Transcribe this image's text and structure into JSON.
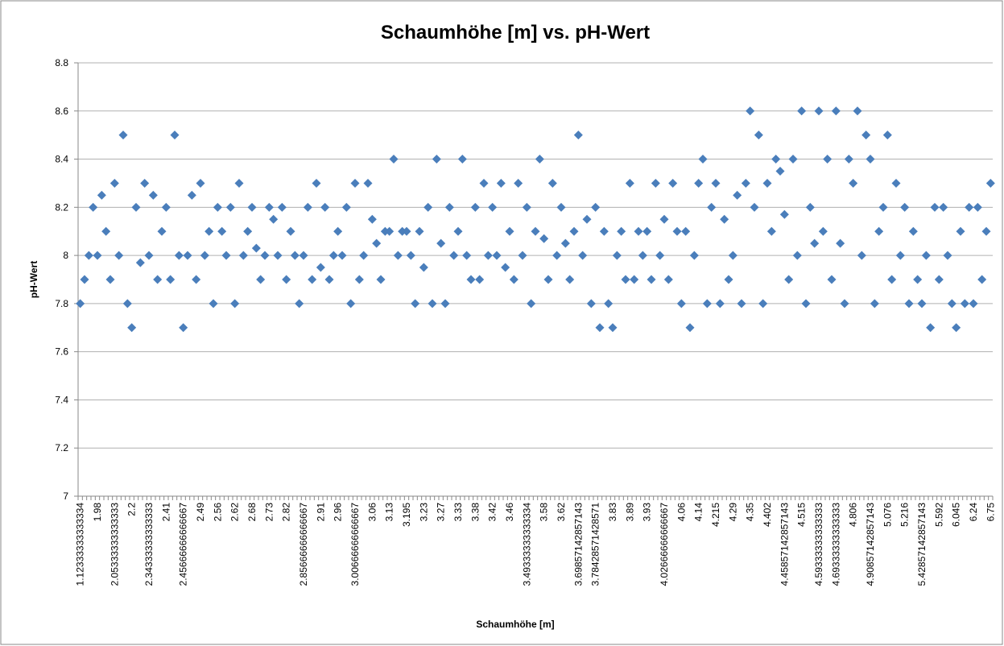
{
  "chart_data": {
    "type": "scatter-category",
    "title": "Schaumhöhe [m] vs. pH-Wert",
    "x_label": "Schaumhöhe [m]",
    "y_label": "pH-Wert",
    "color": "#4a7ebb",
    "grid": true,
    "ylim": [
      7,
      8.8
    ],
    "yticks": [
      7,
      {
        "value": 7.2,
        "label": "7.2"
      },
      {
        "value": 7.4,
        "label": "7.4"
      },
      {
        "value": 7.6,
        "label": "7.6"
      },
      {
        "value": 7.8,
        "label": "7.8"
      },
      8,
      {
        "value": 8.2,
        "label": "8.2"
      },
      {
        "value": 8.4,
        "label": "8.4"
      },
      {
        "value": 8.6,
        "label": "8.6"
      },
      {
        "value": 8.8,
        "label": "8.8"
      }
    ],
    "categories": [
      "1.12333333333334",
      null,
      null,
      null,
      "1.98",
      null,
      null,
      null,
      "2.05333333333333",
      null,
      null,
      null,
      "2.2",
      null,
      null,
      null,
      "2.34333333333333",
      null,
      null,
      null,
      "2.41",
      null,
      null,
      null,
      "2.45666666666667",
      null,
      null,
      null,
      "2.49",
      null,
      null,
      null,
      "2.56",
      null,
      null,
      null,
      "2.62",
      null,
      null,
      null,
      "2.68",
      null,
      null,
      null,
      "2.73",
      null,
      null,
      null,
      "2.82",
      null,
      null,
      null,
      "2.85666666666667",
      null,
      null,
      null,
      "2.91",
      null,
      null,
      null,
      "2.96",
      null,
      null,
      null,
      "3.00666666666667",
      null,
      null,
      null,
      "3.06",
      null,
      null,
      null,
      "3.13",
      null,
      null,
      null,
      "3.195",
      null,
      null,
      null,
      "3.23",
      null,
      null,
      null,
      "3.27",
      null,
      null,
      null,
      "3.33",
      null,
      null,
      null,
      "3.38",
      null,
      null,
      null,
      "3.42",
      null,
      null,
      null,
      "3.46",
      null,
      null,
      null,
      "3.49333333333334",
      null,
      null,
      null,
      "3.58",
      null,
      null,
      null,
      "3.62",
      null,
      null,
      null,
      "3.69857142857143",
      null,
      null,
      null,
      "3.78428571428571",
      null,
      null,
      null,
      "3.83",
      null,
      null,
      null,
      "3.89",
      null,
      null,
      null,
      "3.93",
      null,
      null,
      null,
      "4.02666666666667",
      null,
      null,
      null,
      "4.06",
      null,
      null,
      null,
      "4.14",
      null,
      null,
      null,
      "4.215",
      null,
      null,
      null,
      "4.29",
      null,
      null,
      null,
      "4.35",
      null,
      null,
      null,
      "4.402",
      null,
      null,
      null,
      "4.45857142857143",
      null,
      null,
      null,
      "4.515",
      null,
      null,
      null,
      "4.59333333333333",
      null,
      null,
      null,
      "4.69333333333333",
      null,
      null,
      null,
      "4.806",
      null,
      null,
      null,
      "4.90857142857143",
      null,
      null,
      null,
      "5.076",
      null,
      null,
      null,
      "5.216",
      null,
      null,
      null,
      "5.42857142857143",
      null,
      null,
      null,
      "5.592",
      null,
      null,
      null,
      "6.045",
      null,
      null,
      null,
      "6.24",
      null,
      null,
      null,
      "6.75"
    ],
    "values": [
      7.8,
      7.9,
      8.0,
      8.2,
      8.0,
      8.25,
      8.1,
      7.9,
      8.3,
      8.0,
      8.5,
      7.8,
      7.7,
      8.2,
      7.97,
      8.3,
      8.0,
      8.25,
      7.9,
      8.1,
      8.2,
      7.9,
      8.5,
      8.0,
      7.7,
      8.0,
      8.25,
      7.9,
      8.3,
      8.0,
      8.1,
      7.8,
      8.2,
      8.1,
      8.0,
      8.2,
      7.8,
      8.3,
      8.0,
      8.1,
      8.2,
      8.03,
      7.9,
      8.0,
      8.2,
      8.15,
      8.0,
      8.2,
      7.9,
      8.1,
      8.0,
      7.8,
      8.0,
      8.2,
      7.9,
      8.3,
      7.95,
      8.2,
      7.9,
      8.0,
      8.1,
      8.0,
      8.2,
      7.8,
      8.3,
      7.9,
      8.0,
      8.3,
      8.15,
      8.05,
      7.9,
      8.1,
      8.1,
      8.4,
      8.0,
      8.1,
      8.1,
      8.0,
      7.8,
      8.1,
      7.95,
      8.2,
      7.8,
      8.4,
      8.05,
      7.8,
      8.2,
      8.0,
      8.1,
      8.4,
      8.0,
      7.9,
      8.2,
      7.9,
      8.3,
      8.0,
      8.2,
      8.0,
      8.3,
      7.95,
      8.1,
      7.9,
      8.3,
      8.0,
      8.2,
      7.8,
      8.1,
      8.4,
      8.07,
      7.9,
      8.3,
      8.0,
      8.2,
      8.05,
      7.9,
      8.1,
      8.5,
      8.0,
      8.15,
      7.8,
      8.2,
      7.7,
      8.1,
      7.8,
      7.7,
      8.0,
      8.1,
      7.9,
      8.3,
      7.9,
      8.1,
      8.0,
      8.1,
      7.9,
      8.3,
      8.0,
      8.15,
      7.9,
      8.3,
      8.1,
      7.8,
      8.1,
      7.7,
      8.0,
      8.3,
      8.4,
      7.8,
      8.2,
      8.3,
      7.8,
      8.15,
      7.9,
      8.0,
      8.25,
      7.8,
      8.3,
      8.6,
      8.2,
      8.5,
      7.8,
      8.3,
      8.1,
      8.4,
      8.35,
      8.17,
      7.9,
      8.4,
      8.0,
      8.6,
      7.8,
      8.2,
      8.05,
      8.6,
      8.1,
      8.4,
      7.9,
      8.6,
      8.05,
      7.8,
      8.4,
      8.3,
      8.6,
      8.0,
      8.5,
      8.4,
      7.8,
      8.1,
      8.2,
      8.5,
      7.9,
      8.3,
      8.0,
      8.2,
      7.8,
      8.1,
      7.9,
      7.8,
      8.0,
      7.7,
      8.2,
      7.9,
      8.2,
      8.0,
      7.8,
      7.7,
      8.1,
      7.8,
      8.2,
      7.8,
      8.2,
      7.9,
      8.1,
      8.3
    ]
  }
}
